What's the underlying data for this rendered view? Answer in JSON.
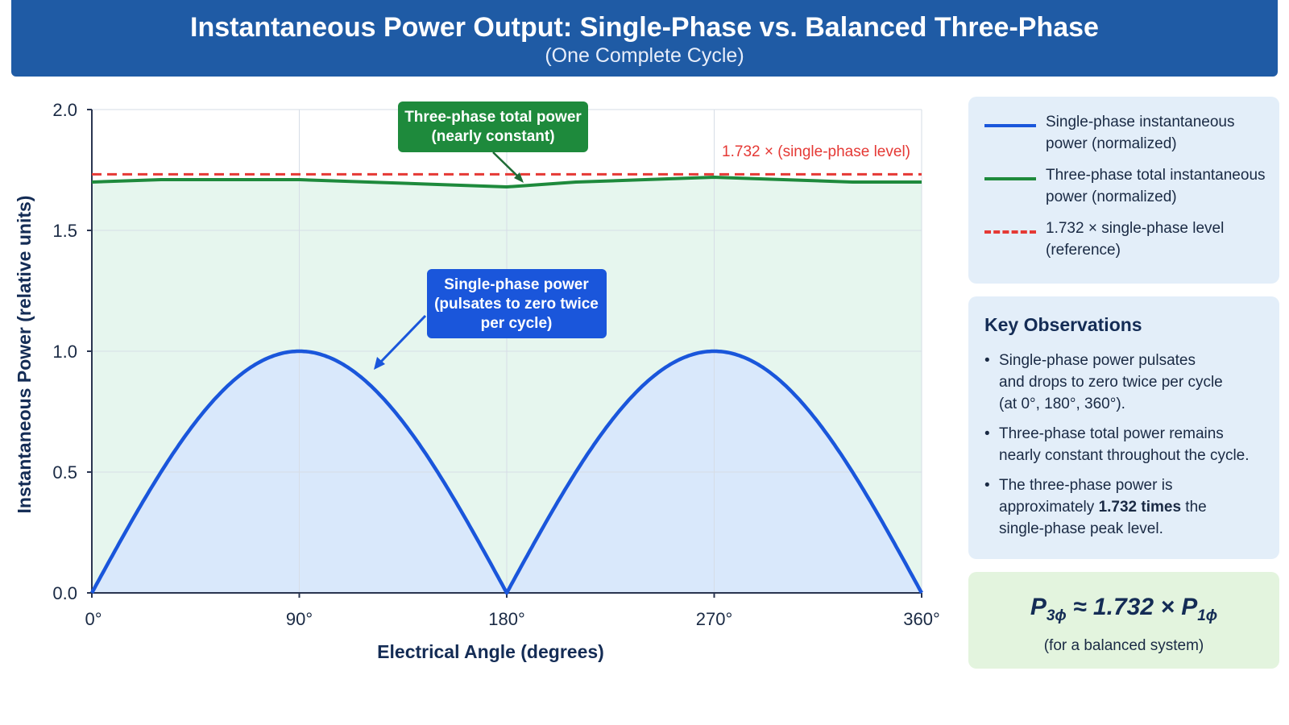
{
  "header": {
    "title": "Instantaneous Power Output: Single-Phase vs. Balanced Three-Phase",
    "subtitle": "(One Complete Cycle)"
  },
  "chart_data": {
    "type": "line",
    "xlabel": "Electrical Angle (degrees)",
    "ylabel": "Instantaneous Power (relative units)",
    "xlim": [
      0,
      360
    ],
    "ylim": [
      0,
      2.0
    ],
    "x_ticks": [
      0,
      90,
      180,
      270,
      360
    ],
    "x_tick_labels": [
      "0°",
      "90°",
      "180°",
      "270°",
      "360°"
    ],
    "y_ticks": [
      0,
      0.5,
      1.0,
      1.5,
      2.0
    ],
    "y_tick_labels": [
      "0.0",
      "0.5",
      "1.0",
      "1.5",
      "2.0"
    ],
    "grid": true,
    "series": [
      {
        "name": "Single-phase instantaneous power (normalized)",
        "color": "#1a56db",
        "x": [
          0,
          15,
          30,
          45,
          60,
          75,
          90,
          105,
          120,
          135,
          150,
          165,
          180,
          195,
          210,
          225,
          240,
          255,
          270,
          285,
          300,
          315,
          330,
          345,
          360
        ],
        "y": [
          0,
          0.26,
          0.5,
          0.71,
          0.87,
          0.97,
          1.0,
          0.97,
          0.87,
          0.71,
          0.5,
          0.26,
          0,
          0.26,
          0.5,
          0.71,
          0.87,
          0.97,
          1.0,
          0.97,
          0.87,
          0.71,
          0.5,
          0.26,
          0
        ]
      },
      {
        "name": "Three-phase total instantaneous power (normalized)",
        "color": "#1e8a3c",
        "x": [
          0,
          30,
          60,
          90,
          120,
          150,
          180,
          210,
          240,
          270,
          300,
          330,
          360
        ],
        "y": [
          1.7,
          1.71,
          1.71,
          1.71,
          1.7,
          1.69,
          1.68,
          1.7,
          1.71,
          1.72,
          1.71,
          1.7,
          1.7
        ]
      },
      {
        "name": "1.732 × single-phase level (reference)",
        "color": "#e53935",
        "style": "dashed",
        "x": [
          0,
          360
        ],
        "y": [
          1.732,
          1.732
        ]
      }
    ],
    "annotations": {
      "three_phase": {
        "line1": "Three-phase total power",
        "line2": "(nearly constant)",
        "color": "#1e8a3c"
      },
      "single_phase": {
        "line1": "Single-phase power",
        "line2": "(pulsates to zero twice",
        "line3": "per cycle)",
        "color": "#1a56db"
      },
      "reference": {
        "text": "1.732 × (single-phase level)",
        "color": "#e53935"
      }
    },
    "fills": {
      "three_phase": "#e6f6ee",
      "single_phase": "#d9e8fb"
    }
  },
  "legend": {
    "items": [
      {
        "line1": "Single-phase instantaneous",
        "line2": "power (normalized)",
        "color": "#1a56db",
        "style": "solid"
      },
      {
        "line1": "Three-phase total instantaneous",
        "line2": "power (normalized)",
        "color": "#1e8a3c",
        "style": "solid"
      },
      {
        "line1": "1.732 × single-phase level",
        "line2": "(reference)",
        "color": "#e53935",
        "style": "dashed"
      }
    ]
  },
  "observations": {
    "title": "Key Observations",
    "bullet": "•",
    "item1": {
      "l1": "Single-phase power pulsates",
      "l2": "and drops to zero twice per cycle",
      "l3": "(at 0°, 180°, 360°)."
    },
    "item2": {
      "l1": "Three-phase total power remains",
      "l2": "nearly constant throughout the cycle."
    },
    "item3": {
      "l1": "The three-phase power is",
      "l2_pre": "approximately ",
      "l2_bold": "1.732 times",
      "l2_post": " the",
      "l3": "single-phase peak level."
    }
  },
  "formula": {
    "p": "P",
    "sub_three": "3ϕ",
    "middle": " ≈ 1.732 × ",
    "sub_one": "1ϕ",
    "note": "(for a balanced system)"
  }
}
